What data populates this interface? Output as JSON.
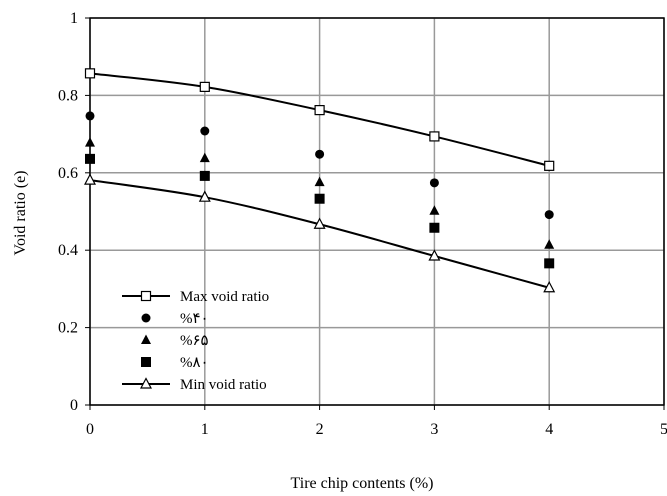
{
  "chart_data": {
    "type": "scatter",
    "title": "",
    "xlabel": "Tire chip contents (%)",
    "ylabel": "Void ratio (e)",
    "xlim": [
      0,
      5
    ],
    "ylim": [
      0,
      1
    ],
    "x_ticks": [
      "0",
      "1",
      "2",
      "3",
      "4",
      "5"
    ],
    "y_ticks": [
      "0",
      "0.2",
      "0.4",
      "0.6",
      "0.8",
      "1"
    ],
    "grid": true,
    "legend_position": "bottom-left",
    "series": [
      {
        "name": "Max void ratio",
        "marker": "open-square",
        "line": true,
        "x": [
          0,
          1,
          2,
          3,
          4
        ],
        "y": [
          0.857,
          0.822,
          0.762,
          0.694,
          0.618
        ]
      },
      {
        "name": "%۴۰",
        "marker": "filled-circle",
        "line": false,
        "x": [
          0,
          1,
          2,
          3,
          4
        ],
        "y": [
          0.747,
          0.708,
          0.648,
          0.574,
          0.492
        ]
      },
      {
        "name": "%۶۵",
        "marker": "filled-triangle",
        "line": false,
        "x": [
          0,
          1,
          2,
          3,
          4
        ],
        "y": [
          0.678,
          0.638,
          0.576,
          0.502,
          0.414
        ]
      },
      {
        "name": "%۸۰",
        "marker": "filled-square",
        "line": false,
        "x": [
          0,
          1,
          2,
          3,
          4
        ],
        "y": [
          0.636,
          0.592,
          0.533,
          0.458,
          0.366
        ]
      },
      {
        "name": "Min void ratio",
        "marker": "open-triangle",
        "line": true,
        "x": [
          0,
          1,
          2,
          3,
          4
        ],
        "y": [
          0.581,
          0.537,
          0.467,
          0.385,
          0.303
        ]
      }
    ]
  }
}
